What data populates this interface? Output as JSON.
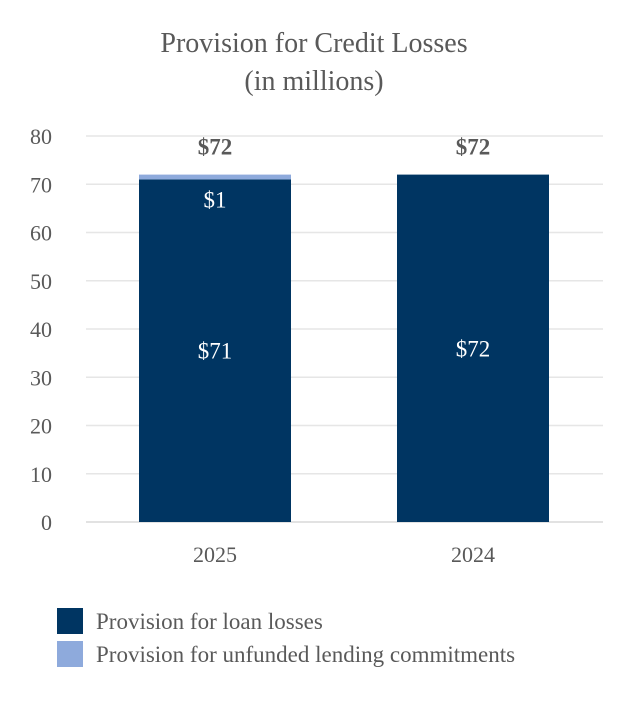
{
  "chart_data": {
    "type": "bar",
    "stacked": true,
    "title": "Provision for Credit Losses",
    "subtitle": "(in millions)",
    "categories": [
      "2025",
      "2024"
    ],
    "series": [
      {
        "name": "Provision for loan losses",
        "values": [
          71,
          72
        ],
        "labels": [
          "$71",
          "$72"
        ],
        "color": "#003562"
      },
      {
        "name": "Provision for unfunded lending commitments",
        "values": [
          1,
          0
        ],
        "labels": [
          "$1",
          ""
        ],
        "color": "#8eaadc"
      }
    ],
    "totals": [
      "$72",
      "$72"
    ],
    "total_values": [
      72,
      72
    ],
    "ylim": [
      0,
      80
    ],
    "yticks": [
      0,
      10,
      20,
      30,
      40,
      50,
      60,
      70,
      80
    ],
    "grid": true,
    "legend": "bottom-left",
    "xlabel": "",
    "ylabel": ""
  }
}
